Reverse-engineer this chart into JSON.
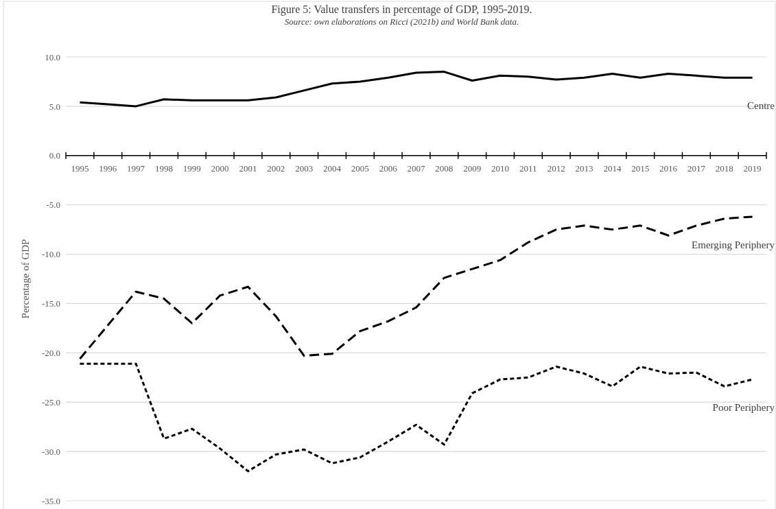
{
  "chart_data": {
    "type": "line",
    "title": "Figure 5: Value transfers in percentage of GDP, 1995-2019.",
    "subtitle": "Source: own elaborations on Ricci (2021b) and World Bank data.",
    "ylabel": "Percentage of GDP",
    "categories": [
      "1995",
      "1996",
      "1997",
      "1998",
      "1999",
      "2000",
      "2001",
      "2002",
      "2003",
      "2004",
      "2005",
      "2006",
      "2007",
      "2008",
      "2009",
      "2010",
      "2011",
      "2012",
      "2013",
      "2014",
      "2015",
      "2016",
      "2017",
      "2018",
      "2019"
    ],
    "series": [
      {
        "name": "Centre",
        "color": "#000000",
        "line_style": "solid",
        "values": [
          5.4,
          5.2,
          5.0,
          5.7,
          5.6,
          5.6,
          5.6,
          5.9,
          6.6,
          7.3,
          7.5,
          7.9,
          8.4,
          8.5,
          7.6,
          8.1,
          8.0,
          7.7,
          7.9,
          8.3,
          7.9,
          8.3,
          8.1,
          7.9,
          7.9
        ]
      },
      {
        "name": "Emerging Periphery",
        "color": "#000000",
        "line_style": "dashed",
        "values": [
          -20.6,
          -17.2,
          -13.8,
          -14.5,
          -17.0,
          -14.2,
          -13.3,
          -16.3,
          -20.3,
          -20.1,
          -17.8,
          -16.8,
          -15.4,
          -12.4,
          -11.5,
          -10.6,
          -8.8,
          -7.5,
          -7.1,
          -7.5,
          -7.1,
          -8.1,
          -7.1,
          -6.4,
          -6.2
        ]
      },
      {
        "name": "Poor Periphery",
        "color": "#000000",
        "line_style": "dotted",
        "values": [
          -21.1,
          -21.1,
          -21.1,
          -28.7,
          -27.7,
          -29.7,
          -32.0,
          -30.3,
          -29.8,
          -31.2,
          -30.6,
          -29.0,
          -27.3,
          -29.3,
          -24.1,
          -22.7,
          -22.5,
          -21.4,
          -22.1,
          -23.4,
          -21.4,
          -22.1,
          -22.0,
          -23.4,
          -22.7
        ]
      }
    ],
    "ylim": [
      -35,
      10
    ],
    "yticks": [
      {
        "value": -35,
        "label": "-35.0"
      },
      {
        "value": -30,
        "label": "-30.0"
      },
      {
        "value": -25,
        "label": "-25.0"
      },
      {
        "value": -20,
        "label": "-20.0"
      },
      {
        "value": -15,
        "label": "-15.0"
      },
      {
        "value": -10,
        "label": "-10.0"
      },
      {
        "value": -5,
        "label": "-5.0"
      },
      {
        "value": 0,
        "label": "0.0"
      },
      {
        "value": 5,
        "label": "5.0"
      },
      {
        "value": 10,
        "label": "10.0"
      }
    ],
    "grid": "y",
    "legend": false,
    "marker": "none"
  }
}
